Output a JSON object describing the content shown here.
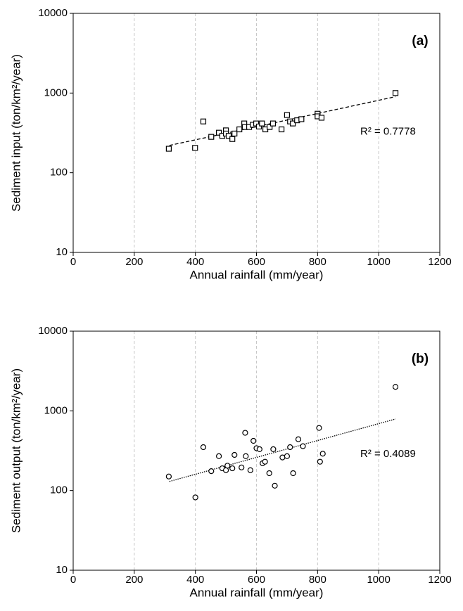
{
  "chart_data": [
    {
      "type": "scatter",
      "panel_label": "(a)",
      "annotation": "R² = 0.7778",
      "x_label": "Annual rainfall (mm/year)",
      "y_label": "Sediment input (ton/km²/year)",
      "xlim": [
        0,
        1200
      ],
      "xticks": [
        0,
        200,
        400,
        600,
        800,
        1000,
        1200
      ],
      "ylim": [
        10,
        10000
      ],
      "yticks": [
        10,
        100,
        1000,
        10000
      ],
      "log_y": true,
      "grid_x": true,
      "x": [
        313,
        399,
        426,
        452,
        477,
        488,
        500,
        500,
        509,
        521,
        528,
        544,
        560,
        562,
        576,
        588,
        599,
        608,
        618,
        629,
        643,
        654,
        682,
        700,
        710,
        719,
        733,
        747,
        800,
        800,
        813,
        1055
      ],
      "series": [
        {
          "marker": "square",
          "color": "#000000",
          "values": [
            200,
            205,
            440,
            282,
            318,
            290,
            340,
            310,
            290,
            265,
            310,
            350,
            415,
            375,
            375,
            400,
            415,
            380,
            415,
            350,
            375,
            415,
            350,
            530,
            440,
            415,
            455,
            470,
            550,
            510,
            490,
            1000
          ]
        }
      ],
      "trendline": {
        "x": [
          315,
          1055
        ],
        "values": [
          220,
          900
        ],
        "style": "dashed"
      }
    },
    {
      "type": "scatter",
      "panel_label": "(b)",
      "annotation": "R² = 0.4089",
      "x_label": "Annual rainfall (mm/year)",
      "y_label": "Sediment output (ton/km²/year)",
      "xlim": [
        0,
        1200
      ],
      "xticks": [
        0,
        200,
        400,
        600,
        800,
        1000,
        1200
      ],
      "ylim": [
        10,
        10000
      ],
      "yticks": [
        10,
        100,
        1000,
        10000
      ],
      "log_y": true,
      "grid_x": true,
      "x": [
        313,
        400,
        426,
        452,
        477,
        488,
        500,
        505,
        521,
        528,
        551,
        563,
        565,
        580,
        590,
        600,
        610,
        620,
        628,
        642,
        655,
        660,
        685,
        700,
        710,
        720,
        737,
        752,
        805,
        808,
        817,
        1055
      ],
      "series": [
        {
          "marker": "circle",
          "color": "#000000",
          "values": [
            150,
            82,
            350,
            175,
            270,
            190,
            180,
            205,
            190,
            280,
            195,
            530,
            270,
            180,
            420,
            340,
            330,
            220,
            230,
            165,
            330,
            115,
            260,
            270,
            350,
            165,
            440,
            360,
            610,
            230,
            290,
            2000
          ]
        }
      ],
      "trendline": {
        "x": [
          315,
          1055
        ],
        "values": [
          130,
          790
        ],
        "style": "dotted"
      }
    }
  ]
}
